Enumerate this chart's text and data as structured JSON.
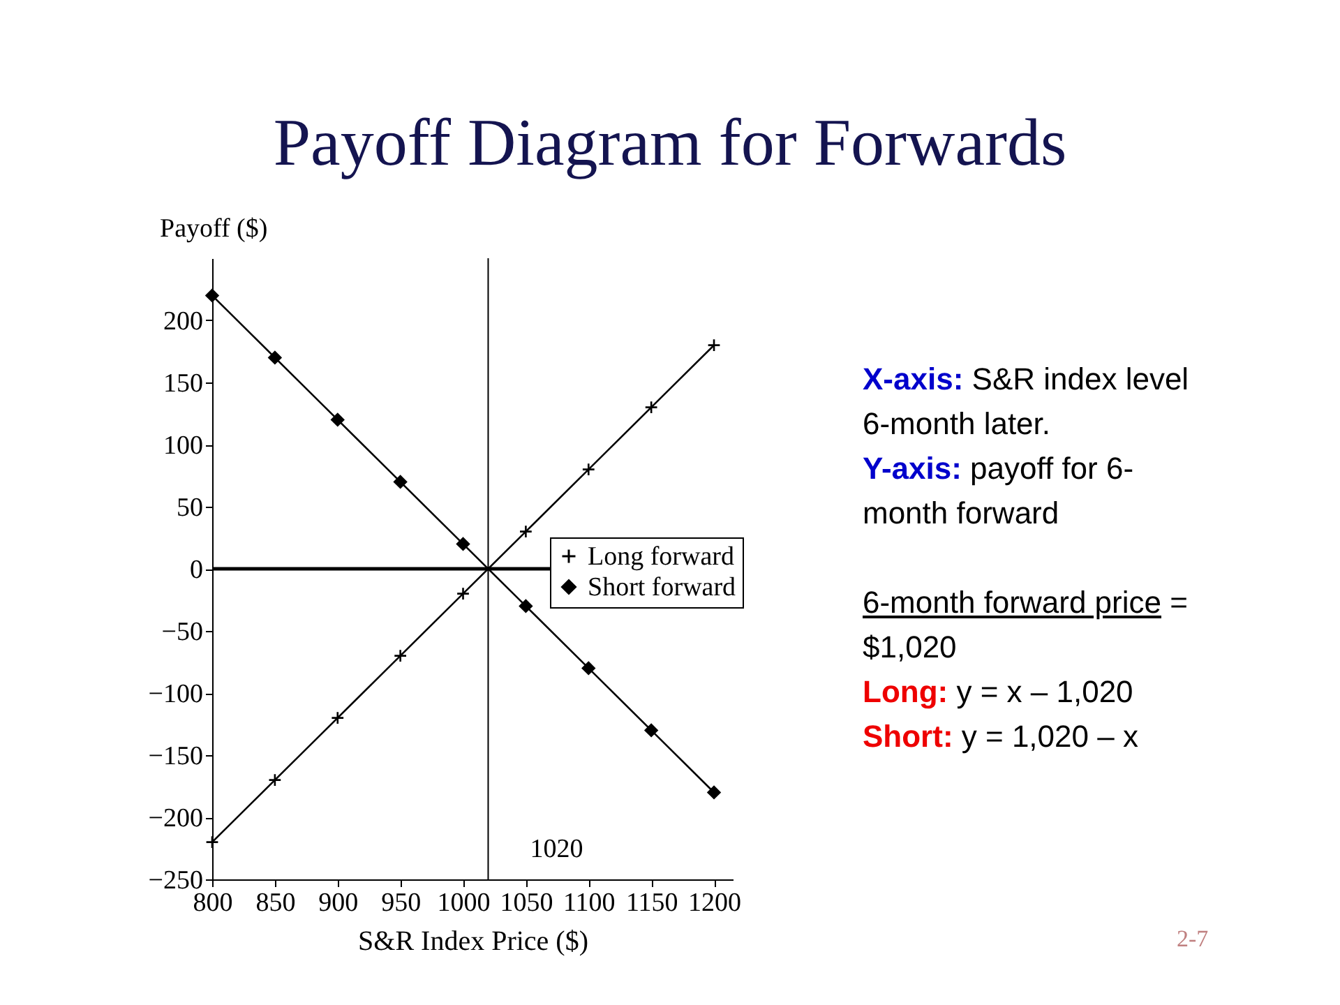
{
  "chart_data": {
    "type": "line",
    "title": "Payoff Diagram for Forwards",
    "xlabel": "S&R Index Price ($)",
    "ylabel": "Payoff ($)",
    "x": [
      800,
      850,
      900,
      950,
      1000,
      1050,
      1100,
      1150,
      1200
    ],
    "series": [
      {
        "name": "Long forward",
        "color": "#000000",
        "marker": "cross",
        "values": [
          -220,
          -170,
          -120,
          -70,
          -20,
          30,
          80,
          130,
          180
        ]
      },
      {
        "name": "Short forward",
        "color": "#000000",
        "marker": "diamond",
        "values": [
          220,
          170,
          120,
          70,
          20,
          -30,
          -80,
          -130,
          -180
        ]
      }
    ],
    "xlim": [
      800,
      1215
    ],
    "xticks": [
      800,
      850,
      900,
      950,
      1000,
      1050,
      1100,
      1150,
      1200
    ],
    "ylim": [
      -250,
      250
    ],
    "yticks": [
      -250,
      -200,
      -150,
      -100,
      -50,
      0,
      50,
      100,
      150,
      200
    ],
    "ref_lines": [
      {
        "axis": "y",
        "value": 0,
        "label": null
      },
      {
        "axis": "x",
        "value": 1020,
        "label": "1020"
      }
    ],
    "legend": "right",
    "grid": false,
    "line_style": "solid",
    "annotations": [
      "X-axis: S&R index level 6-month later.",
      "Y-axis: payoff for 6-month forward",
      "6-month forward price = $1,020",
      "Long: y = x – 1,020",
      "Short: y = 1,020 – x",
      "2-7"
    ]
  }
}
